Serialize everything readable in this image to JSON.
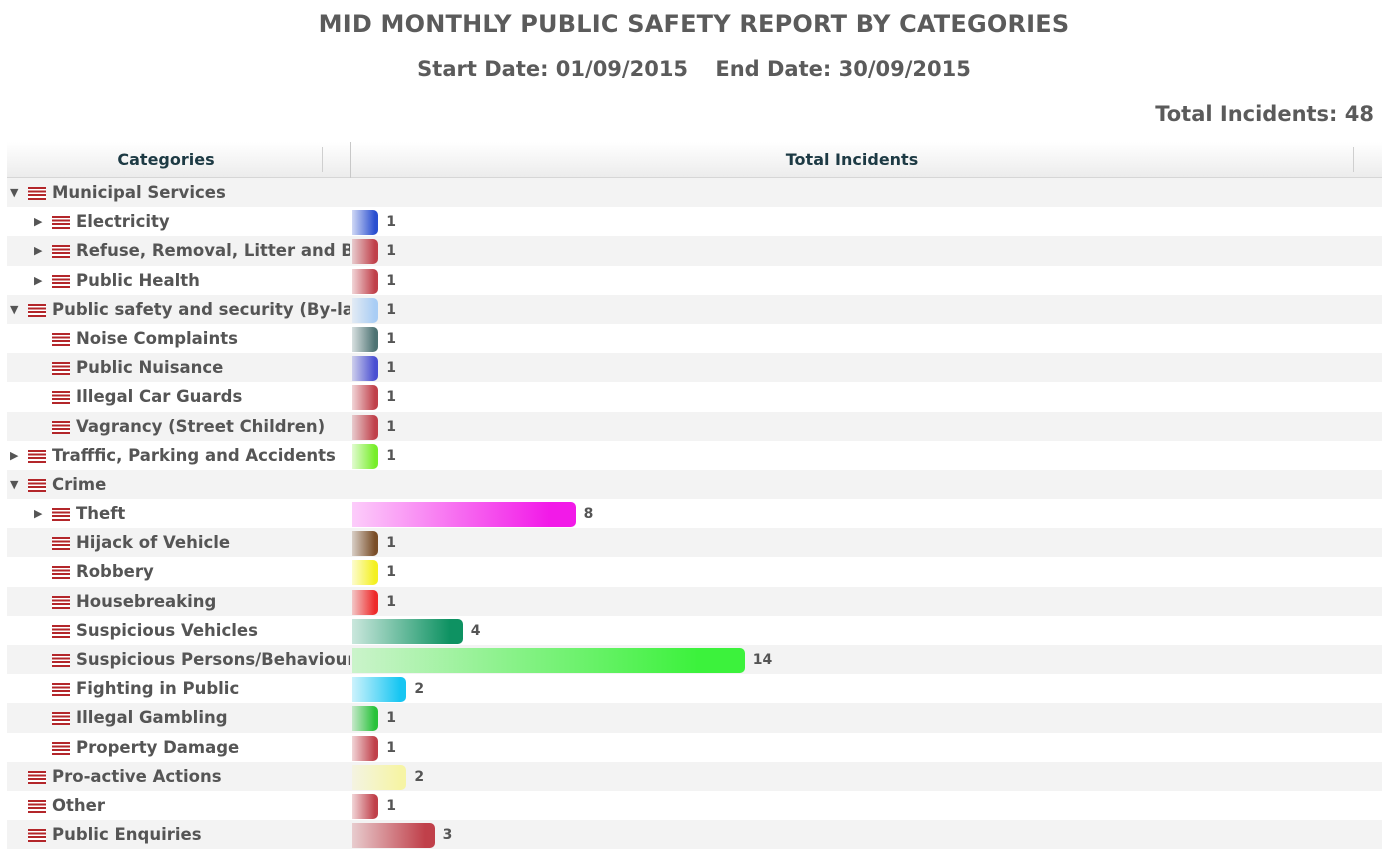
{
  "header": {
    "title": "MID MONTHLY PUBLIC SAFETY REPORT BY CATEGORIES",
    "start_date": "Start Date: 01/09/2015",
    "end_date": "End Date: 30/09/2015",
    "total_incidents": "Total Incidents: 48"
  },
  "columns": {
    "categories": "Categories",
    "total": "Total Incidents"
  },
  "chart_data": {
    "type": "bar",
    "orientation": "horizontal",
    "title": "MID MONTHLY PUBLIC SAFETY REPORT BY CATEGORIES",
    "xlabel": "Total Incidents",
    "ylabel": "Categories",
    "xlim": [
      0,
      48
    ],
    "rows": [
      {
        "label": "Municipal Services",
        "level": 0,
        "toggle": "expanded",
        "value": null,
        "color": null
      },
      {
        "label": "Electricity",
        "level": 1,
        "toggle": "collapsed",
        "value": 1,
        "color": "#2a4fd0"
      },
      {
        "label": "Refuse, Removal, Litter and Bins",
        "level": 1,
        "toggle": "collapsed",
        "value": 1,
        "color": "#c0404a"
      },
      {
        "label": "Public Health",
        "level": 1,
        "toggle": "collapsed",
        "value": 1,
        "color": "#c0404a"
      },
      {
        "label": "Public safety and security (By-laws)",
        "level": 0,
        "toggle": "expanded",
        "value": 1,
        "color": "#a9cdf5"
      },
      {
        "label": "Noise Complaints",
        "level": 1,
        "toggle": "none",
        "value": 1,
        "color": "#4e7373"
      },
      {
        "label": "Public Nuisance",
        "level": 1,
        "toggle": "none",
        "value": 1,
        "color": "#4a4fd2"
      },
      {
        "label": "Illegal Car Guards",
        "level": 1,
        "toggle": "none",
        "value": 1,
        "color": "#c0404a"
      },
      {
        "label": "Vagrancy (Street Children)",
        "level": 1,
        "toggle": "none",
        "value": 1,
        "color": "#c0404a"
      },
      {
        "label": "Trafffic, Parking and Accidents",
        "level": 0,
        "toggle": "collapsed",
        "value": 1,
        "color": "#77ee2a"
      },
      {
        "label": "Crime",
        "level": 0,
        "toggle": "expanded",
        "value": null,
        "color": null
      },
      {
        "label": "Theft",
        "level": 1,
        "toggle": "collapsed",
        "value": 8,
        "color": "#f21ae8"
      },
      {
        "label": "Hijack of Vehicle",
        "level": 1,
        "toggle": "none",
        "value": 1,
        "color": "#7a4e28"
      },
      {
        "label": "Robbery",
        "level": 1,
        "toggle": "none",
        "value": 1,
        "color": "#f4f020"
      },
      {
        "label": "Housebreaking",
        "level": 1,
        "toggle": "none",
        "value": 1,
        "color": "#ee2a2a"
      },
      {
        "label": "Suspicious Vehicles",
        "level": 1,
        "toggle": "none",
        "value": 4,
        "color": "#0e9262"
      },
      {
        "label": "Suspicious Persons/Behaviour",
        "level": 1,
        "toggle": "none",
        "value": 14,
        "color": "#3cf23c"
      },
      {
        "label": "Fighting in Public",
        "level": 1,
        "toggle": "none",
        "value": 2,
        "color": "#18c6f2"
      },
      {
        "label": "Illegal Gambling",
        "level": 1,
        "toggle": "none",
        "value": 1,
        "color": "#28c23a"
      },
      {
        "label": "Property Damage",
        "level": 1,
        "toggle": "none",
        "value": 1,
        "color": "#c0404a"
      },
      {
        "label": "Pro-active Actions",
        "level": 0,
        "toggle": "none",
        "value": 2,
        "color": "#f6f4a6"
      },
      {
        "label": "Other",
        "level": 0,
        "toggle": "none",
        "value": 1,
        "color": "#c0404a"
      },
      {
        "label": "Public Enquiries",
        "level": 0,
        "toggle": "none",
        "value": 3,
        "color": "#c0404a"
      }
    ]
  }
}
